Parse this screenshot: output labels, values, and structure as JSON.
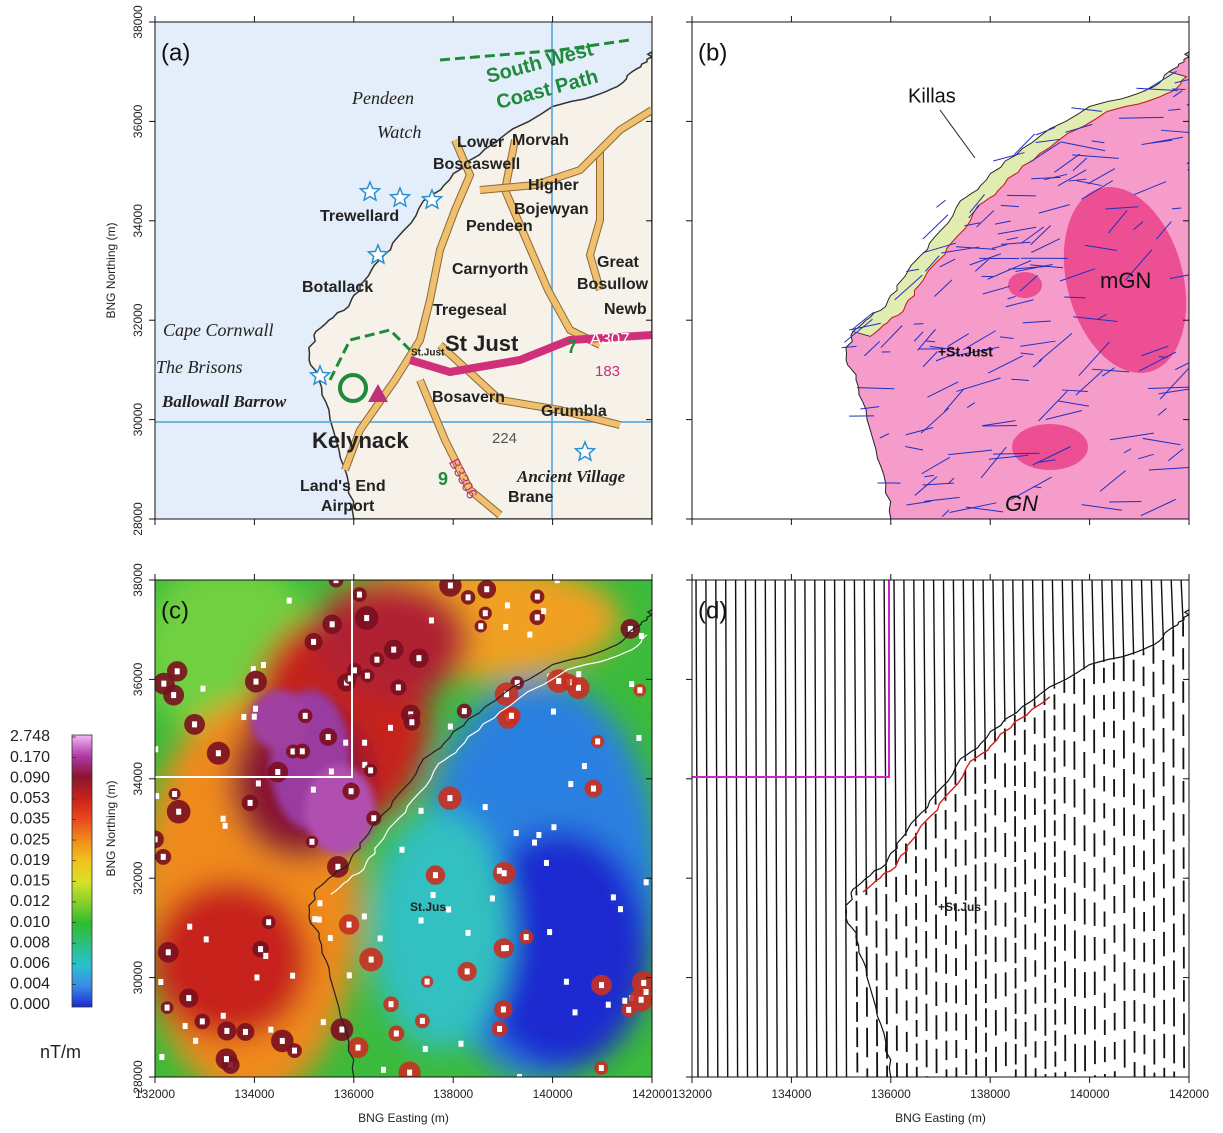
{
  "figure": {
    "axes": {
      "xlim": [
        132000,
        142000
      ],
      "ylim": [
        28000,
        38000
      ],
      "xticks": [
        132000,
        134000,
        136000,
        138000,
        140000,
        142000
      ],
      "yticks": [
        28000,
        30000,
        32000,
        34000,
        36000,
        38000
      ],
      "x_label": "BNG Easting (m)",
      "y_label": "BNG Northing (m)"
    },
    "panels": [
      {
        "label": "(a)",
        "places": [
          "South West",
          "Coast Path",
          "Pendeen",
          "Watch",
          "Lower",
          "Morvah",
          "Boscaswell",
          "Higher",
          "Bojewyan",
          "Trewellard",
          "Pendeen",
          "Carnyorth",
          "Great",
          "Bosullow",
          "Botallack",
          "Tregeseal",
          "Newb",
          "Cape Cornwall",
          "St Just",
          "St.Just",
          "A307",
          "The Brisons",
          "Ballowall Barrow",
          "Bosavern",
          "Grumbla",
          "Kelynack",
          "224",
          "B3306",
          "Land's End",
          "Airport",
          "Ancient Village",
          "Brane",
          "183",
          "7",
          "9"
        ]
      },
      {
        "label": "(b)",
        "annotations": [
          "Killas",
          "mGN",
          "+St.Just",
          "GN"
        ]
      },
      {
        "label": "(c)",
        "annotations": [
          "St.Jus"
        ]
      },
      {
        "label": "(d)",
        "annotations": [
          "+St.Jus"
        ]
      }
    ],
    "colorbar": {
      "ticks": [
        2.748,
        {
          "value": 0.17,
          "label": "0.170"
        },
        {
          "value": 0.09,
          "label": "0.090"
        },
        0.053,
        0.035,
        0.025,
        0.019,
        0.015,
        0.012,
        {
          "value": 0.01,
          "label": "0.010"
        },
        0.008,
        0.006,
        0.004,
        {
          "value": 0,
          "label": "0.000"
        }
      ],
      "colors": [
        "#f4b8f4",
        "#b03aa8",
        "#8a1530",
        "#c8201c",
        "#e8481c",
        "#f08a1c",
        "#f2c21c",
        "#d8e02a",
        "#88d02a",
        "#2ebc2e",
        "#2cc080",
        "#2ac0d0",
        "#3a8ae8",
        "#1a2ad0"
      ],
      "unit": "nT/m"
    }
  }
}
